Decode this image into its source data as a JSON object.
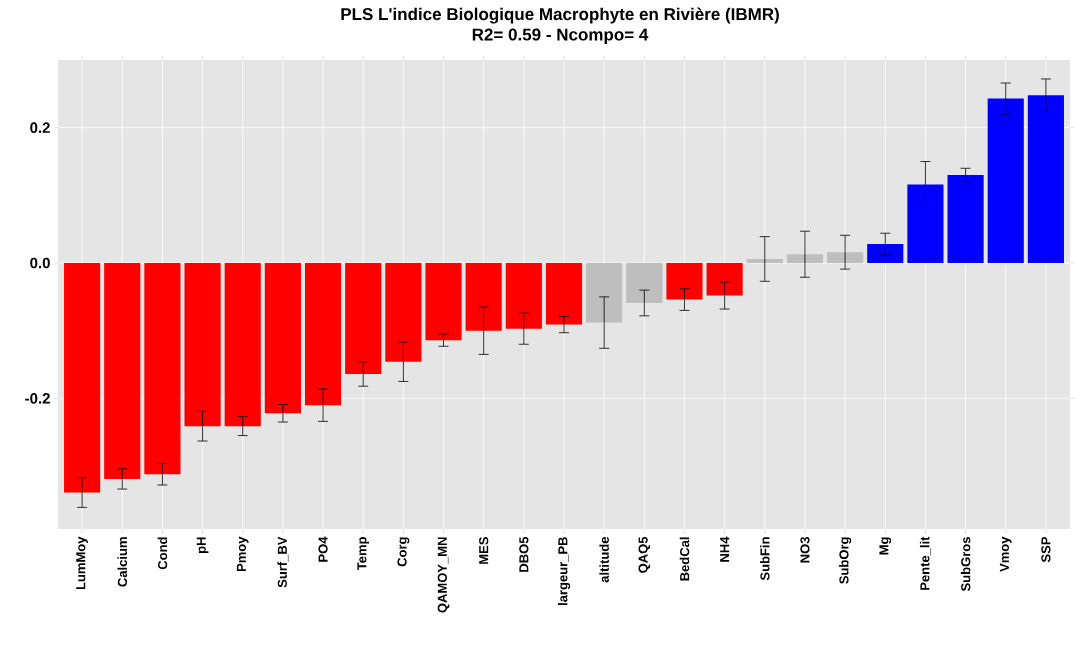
{
  "chart_data": {
    "type": "bar",
    "title": "PLS L'indice Biologique Macrophyte en Rivière (IBMR)",
    "subtitle": "R2= 0.59  - Ncompo= 4",
    "categories": [
      "LumMoy",
      "Calcium",
      "Cond",
      "pH",
      "Pmoy",
      "Surf_BV",
      "PO4",
      "Temp",
      "Corg",
      "QAMOY_MN",
      "MES",
      "DBO5",
      "largeur_PB",
      "altitude",
      "QAQ5",
      "BedCal",
      "NH4",
      "SubFin",
      "NO3",
      "SubOrg",
      "Mg",
      "Pente_lit",
      "SubGros",
      "Vmoy",
      "SSP"
    ],
    "values": [
      -0.339,
      -0.319,
      -0.312,
      -0.241,
      -0.241,
      -0.222,
      -0.21,
      -0.164,
      -0.146,
      -0.114,
      -0.1,
      -0.097,
      -0.091,
      -0.088,
      -0.059,
      -0.054,
      -0.048,
      0.006,
      0.013,
      0.016,
      0.028,
      0.116,
      0.13,
      0.243,
      0.248
    ],
    "errors": [
      0.022,
      0.015,
      0.016,
      0.022,
      0.014,
      0.013,
      0.024,
      0.018,
      0.029,
      0.009,
      0.035,
      0.023,
      0.012,
      0.038,
      0.019,
      0.016,
      0.02,
      0.033,
      0.034,
      0.025,
      0.016,
      0.034,
      0.01,
      0.023,
      0.024
    ],
    "colors": [
      "#ff0000",
      "#ff0000",
      "#ff0000",
      "#ff0000",
      "#ff0000",
      "#ff0000",
      "#ff0000",
      "#ff0000",
      "#ff0000",
      "#ff0000",
      "#ff0000",
      "#ff0000",
      "#ff0000",
      "#bebebe",
      "#bebebe",
      "#ff0000",
      "#ff0000",
      "#bebebe",
      "#bebebe",
      "#bebebe",
      "#0000ff",
      "#0000ff",
      "#0000ff",
      "#0000ff",
      "#0000ff"
    ],
    "ylim": [
      -0.393,
      0.3
    ],
    "yticks": [
      {
        "value": -0.2,
        "label": "-0.2"
      },
      {
        "value": 0.0,
        "label": "0.0"
      },
      {
        "value": 0.2,
        "label": "0.2"
      }
    ],
    "grid": true
  }
}
